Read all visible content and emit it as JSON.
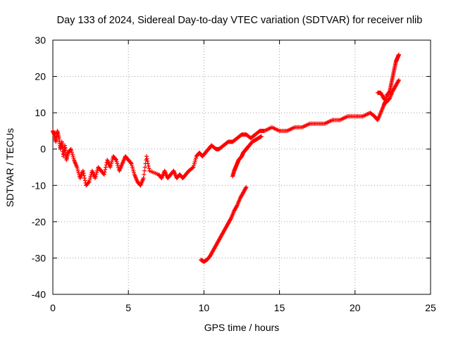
{
  "chart_data": {
    "type": "scatter",
    "title": "Day 133 of 2024, Sidereal Day-to-day VTEC variation (SDTVAR) for receiver nlib",
    "xlabel": "GPS time / hours",
    "ylabel": "SDTVAR / TECUs",
    "xlim": [
      0,
      25
    ],
    "ylim": [
      -40,
      30
    ],
    "xticks": [
      "0",
      "5",
      "10",
      "15",
      "20",
      "25"
    ],
    "yticks": [
      "30",
      "20",
      "10",
      "0",
      "-10",
      "-20",
      "-30",
      "-40"
    ],
    "grid": true,
    "marker": "plus",
    "color": "#ff0000",
    "series": [
      {
        "name": "main trace",
        "x": [
          0.0,
          0.1,
          0.2,
          0.3,
          0.4,
          0.5,
          0.6,
          0.7,
          0.8,
          0.9,
          1.0,
          1.2,
          1.4,
          1.6,
          1.8,
          2.0,
          2.2,
          2.4,
          2.6,
          2.8,
          3.0,
          3.2,
          3.4,
          3.6,
          3.8,
          4.0,
          4.2,
          4.4,
          4.6,
          4.8,
          5.0,
          5.2,
          5.4,
          5.6,
          5.8,
          6.0,
          6.2,
          6.4,
          7.0,
          7.2,
          7.4,
          7.6,
          7.8,
          8.0,
          8.2,
          8.4,
          8.6,
          8.8,
          9.0,
          9.3,
          9.5,
          9.7,
          9.9,
          10.1,
          10.3,
          10.5,
          10.8,
          11.0,
          11.3,
          11.6,
          11.9,
          12.2,
          12.5,
          12.8,
          13.1,
          13.4,
          13.7,
          14.0,
          14.5,
          15.0,
          15.5,
          16.0,
          16.5,
          17.0,
          17.5,
          18.0,
          18.5,
          19.0,
          19.5,
          20.0,
          20.5,
          21.0,
          21.3,
          21.5,
          21.7,
          21.9,
          22.0,
          22.1,
          22.2,
          22.3,
          22.4,
          22.5,
          22.6,
          22.7,
          22.8,
          22.9
        ],
        "y": [
          5,
          4,
          2,
          5,
          3,
          0,
          2,
          -2,
          1,
          -3,
          -1,
          0,
          -3,
          -5,
          -8,
          -6,
          -10,
          -9,
          -6,
          -8,
          -5,
          -6,
          -7,
          -3,
          -5,
          -2,
          -3,
          -6,
          -4,
          -2,
          -3,
          -4,
          -7,
          -9,
          -10,
          -8,
          -2,
          -6,
          -7,
          -8,
          -6,
          -8,
          -7,
          -6,
          -8,
          -7,
          -8,
          -7,
          -6,
          -5,
          -2,
          -1,
          -2,
          -1,
          0,
          1,
          0,
          0,
          1,
          2,
          2,
          3,
          4,
          4,
          3,
          4,
          5,
          5,
          6,
          5,
          5,
          6,
          6,
          7,
          7,
          7,
          8,
          8,
          9,
          9,
          9,
          10,
          9,
          8,
          10,
          12,
          13,
          15,
          15,
          16,
          18,
          20,
          22,
          24,
          25,
          26
        ]
      },
      {
        "name": "lower branch",
        "x": [
          9.8,
          10.0,
          10.2,
          10.4,
          10.6,
          10.8,
          11.0,
          11.2,
          11.4,
          11.6,
          11.8,
          12.0,
          12.2,
          12.4,
          12.6,
          12.8
        ],
        "y": [
          -30.5,
          -31,
          -30.5,
          -29.5,
          -28,
          -26.5,
          -25,
          -23.5,
          -22,
          -20.5,
          -19,
          -17,
          -15.5,
          -13.5,
          -12,
          -10.5
        ]
      },
      {
        "name": "middle branch",
        "x": [
          11.9,
          12.0,
          12.1,
          12.2,
          12.3,
          12.4,
          12.5,
          12.6,
          12.7,
          12.8,
          12.9,
          13.0,
          13.2,
          13.4,
          13.6,
          13.8
        ],
        "y": [
          -7.5,
          -6,
          -5,
          -4,
          -3,
          -2.5,
          -2,
          -1,
          -0.5,
          0,
          0.5,
          1,
          2,
          2.5,
          3,
          3.5
        ]
      },
      {
        "name": "late branch",
        "x": [
          21.5,
          21.7,
          21.9,
          22.1,
          22.3,
          22.5,
          22.7,
          22.9
        ],
        "y": [
          15.5,
          15.5,
          14,
          13,
          14,
          16,
          17.5,
          19
        ]
      }
    ]
  }
}
